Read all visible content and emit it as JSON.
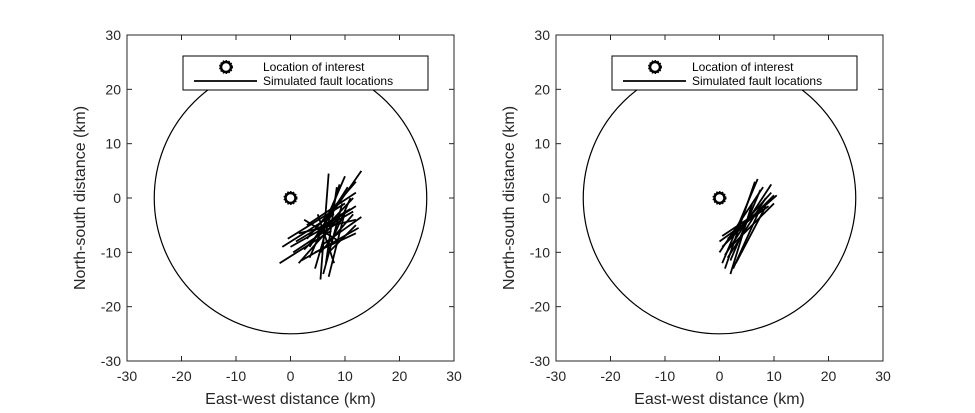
{
  "chart_data": [
    {
      "type": "scatter",
      "title": "",
      "xlabel": "East-west distance (km)",
      "ylabel": "North-south distance (km)",
      "xlim": [
        -30,
        30
      ],
      "ylim": [
        -30,
        30
      ],
      "xticks": [
        -30,
        -20,
        -10,
        0,
        10,
        20,
        30
      ],
      "yticks": [
        -30,
        -20,
        -10,
        0,
        10,
        20,
        30
      ],
      "grid": false,
      "legend": {
        "placement": "top-right",
        "entries": [
          "Location of interest",
          "Simulated fault locations"
        ]
      },
      "circle": {
        "center": [
          0,
          0
        ],
        "radius": 25
      },
      "location_of_interest": [
        0,
        0
      ],
      "series": [
        {
          "name": "Simulated fault locations",
          "segments": [
            [
              [
                -2.0,
                -12.0
              ],
              [
                7.5,
                -6.0
              ]
            ],
            [
              [
                -1.5,
                -9.0
              ],
              [
                8.0,
                -3.0
              ]
            ],
            [
              [
                -0.5,
                -7.5
              ],
              [
                10.0,
                -1.0
              ]
            ],
            [
              [
                0.5,
                -10.0
              ],
              [
                9.5,
                -4.0
              ]
            ],
            [
              [
                1.0,
                -8.0
              ],
              [
                11.0,
                -2.0
              ]
            ],
            [
              [
                1.5,
                -6.5
              ],
              [
                12.0,
                -4.0
              ]
            ],
            [
              [
                2.5,
                -9.5
              ],
              [
                11.5,
                0.0
              ]
            ],
            [
              [
                3.0,
                -7.5
              ],
              [
                12.0,
                3.0
              ]
            ],
            [
              [
                3.5,
                -9.0
              ],
              [
                10.5,
                2.0
              ]
            ],
            [
              [
                3.5,
                -11.0
              ],
              [
                10.0,
                4.0
              ]
            ],
            [
              [
                4.0,
                -8.0
              ],
              [
                13.0,
                5.0
              ]
            ],
            [
              [
                4.5,
                -13.0
              ],
              [
                9.0,
                2.5
              ]
            ],
            [
              [
                5.0,
                -6.0
              ],
              [
                12.0,
                -1.5
              ]
            ],
            [
              [
                5.5,
                -15.0
              ],
              [
                7.0,
                4.5
              ]
            ],
            [
              [
                5.5,
                -10.0
              ],
              [
                11.5,
                -3.0
              ]
            ],
            [
              [
                6.0,
                -14.0
              ],
              [
                9.5,
                -1.0
              ]
            ],
            [
              [
                6.5,
                -12.0
              ],
              [
                8.5,
                2.0
              ]
            ],
            [
              [
                7.0,
                -10.0
              ],
              [
                12.0,
                -5.0
              ]
            ],
            [
              [
                7.0,
                -14.5
              ],
              [
                10.0,
                -2.5
              ]
            ],
            [
              [
                7.5,
                -8.0
              ],
              [
                11.0,
                0.0
              ]
            ],
            [
              [
                2.0,
                -11.5
              ],
              [
                12.5,
                -5.5
              ]
            ],
            [
              [
                0.0,
                -9.0
              ],
              [
                11.5,
                -2.5
              ]
            ],
            [
              [
                3.0,
                -5.0
              ],
              [
                12.0,
                1.0
              ]
            ],
            [
              [
                4.5,
                -10.0
              ],
              [
                12.0,
                -6.5
              ]
            ],
            [
              [
                6.0,
                -8.5
              ],
              [
                13.0,
                -3.5
              ]
            ],
            [
              [
                2.5,
                -4.0
              ],
              [
                9.0,
                -8.0
              ]
            ],
            [
              [
                5.0,
                -3.0
              ],
              [
                8.0,
                -12.0
              ]
            ],
            [
              [
                1.5,
                -12.0
              ],
              [
                9.0,
                -3.5
              ]
            ]
          ]
        }
      ]
    },
    {
      "type": "scatter",
      "title": "",
      "xlabel": "East-west distance (km)",
      "ylabel": "North-south distance (km)",
      "xlim": [
        -30,
        30
      ],
      "ylim": [
        -30,
        30
      ],
      "xticks": [
        -30,
        -20,
        -10,
        0,
        10,
        20,
        30
      ],
      "yticks": [
        -30,
        -20,
        -10,
        0,
        10,
        20,
        30
      ],
      "grid": false,
      "legend": {
        "placement": "top-right",
        "entries": [
          "Location of interest",
          "Simulated fault locations"
        ]
      },
      "circle": {
        "center": [
          0,
          0
        ],
        "radius": 25
      },
      "location_of_interest": [
        0,
        0
      ],
      "series": [
        {
          "name": "Simulated fault locations",
          "segments": [
            [
              [
                0.0,
                -10.0
              ],
              [
                8.0,
                2.0
              ]
            ],
            [
              [
                0.5,
                -12.0
              ],
              [
                7.0,
                3.5
              ]
            ],
            [
              [
                1.0,
                -8.5
              ],
              [
                9.5,
                1.0
              ]
            ],
            [
              [
                1.5,
                -11.0
              ],
              [
                8.5,
                0.0
              ]
            ],
            [
              [
                0.5,
                -9.0
              ],
              [
                10.0,
                0.5
              ]
            ],
            [
              [
                1.0,
                -13.0
              ],
              [
                6.5,
                3.0
              ]
            ],
            [
              [
                1.5,
                -7.5
              ],
              [
                10.5,
                0.5
              ]
            ],
            [
              [
                2.0,
                -11.5
              ],
              [
                7.5,
                1.5
              ]
            ],
            [
              [
                0.0,
                -8.0
              ],
              [
                9.0,
                -1.5
              ]
            ],
            [
              [
                2.0,
                -14.0
              ],
              [
                6.0,
                -1.0
              ]
            ],
            [
              [
                1.0,
                -10.5
              ],
              [
                9.5,
                2.5
              ]
            ],
            [
              [
                2.5,
                -13.0
              ],
              [
                7.0,
                -3.0
              ]
            ],
            [
              [
                3.0,
                -12.0
              ],
              [
                8.5,
                -1.5
              ]
            ],
            [
              [
                0.5,
                -7.0
              ],
              [
                8.0,
                -2.0
              ]
            ],
            [
              [
                1.5,
                -9.5
              ],
              [
                10.0,
                -1.0
              ]
            ]
          ]
        }
      ]
    }
  ]
}
